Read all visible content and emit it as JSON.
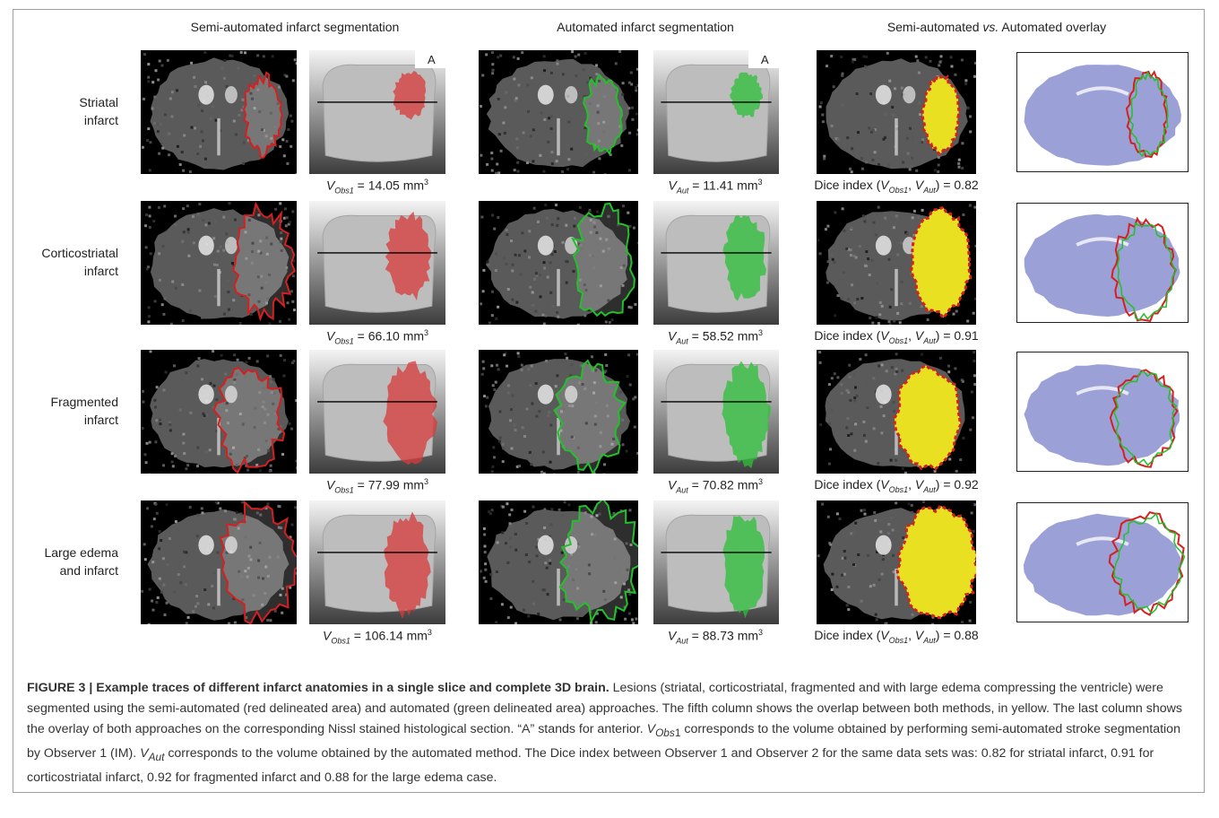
{
  "column_headers": [
    "Semi-automated infarct segmentation",
    "Automated infarct segmentation",
    "Semi-automated vs. Automated overlay"
  ],
  "header3_parts": {
    "a": "Semi-automated ",
    "vs": "vs.",
    "b": " Automated overlay"
  },
  "anterior_marker": "A",
  "rows": [
    {
      "label_line1": "Striatal",
      "label_line2": "infarct",
      "v_obs1": "14.05",
      "v_aut": "11.41",
      "dice": "0.82"
    },
    {
      "label_line1": "Corticostriatal",
      "label_line2": "infarct",
      "v_obs1": "66.10",
      "v_aut": "58.52",
      "dice": "0.91"
    },
    {
      "label_line1": "Fragmented",
      "label_line2": "infarct",
      "v_obs1": "77.99",
      "v_aut": "70.82",
      "dice": "0.92"
    },
    {
      "label_line1": "Large edema",
      "label_line2": "and infarct",
      "v_obs1": "106.14",
      "v_aut": "88.73",
      "dice": "0.88"
    }
  ],
  "caption_bits": {
    "v": "V",
    "obs1": "Obs1",
    "aut": "Aut",
    "eq": " = ",
    "unit": " mm",
    "cube": "3",
    "dice_prefix": "Dice index (",
    "comma": ", ",
    "close": ") = "
  },
  "figure_caption": {
    "title": "FIGURE 3 | Example traces of different infarct anatomies in a single slice and complete 3D brain.",
    "body1": " Lesions (striatal, corticostriatal, fragmented and with large edema compressing the ventricle) were segmented using the semi-automated (red delineated area) and automated (green delineated area) approaches. The fifth column shows the overlap between both methods, in yellow. The last column shows the overlay of both approaches on the corresponding Nissl stained histological section. “A” stands for anterior. ",
    "vobs_v": "V",
    "vobs_sub": "Obs",
    "vobs_tail": "1",
    "body2": " corresponds to the volume obtained by performing semi-automated stroke segmentation by Observer 1 (IM). ",
    "vaut_v": "V",
    "vaut_sub": "Aut",
    "body3": " corresponds to the volume obtained by the automated method. The Dice index between Observer 1 and Observer 2 for the same data sets was: 0.82 for striatal infarct, 0.91 for corticostriatal infarct, 0.92 for fragmented infarct and 0.88 for the large edema case."
  },
  "colors": {
    "semi_outline": "#d42020",
    "auto_outline": "#22c02a",
    "overlap": "#e8e020",
    "nissl": "#8a8fd0"
  }
}
